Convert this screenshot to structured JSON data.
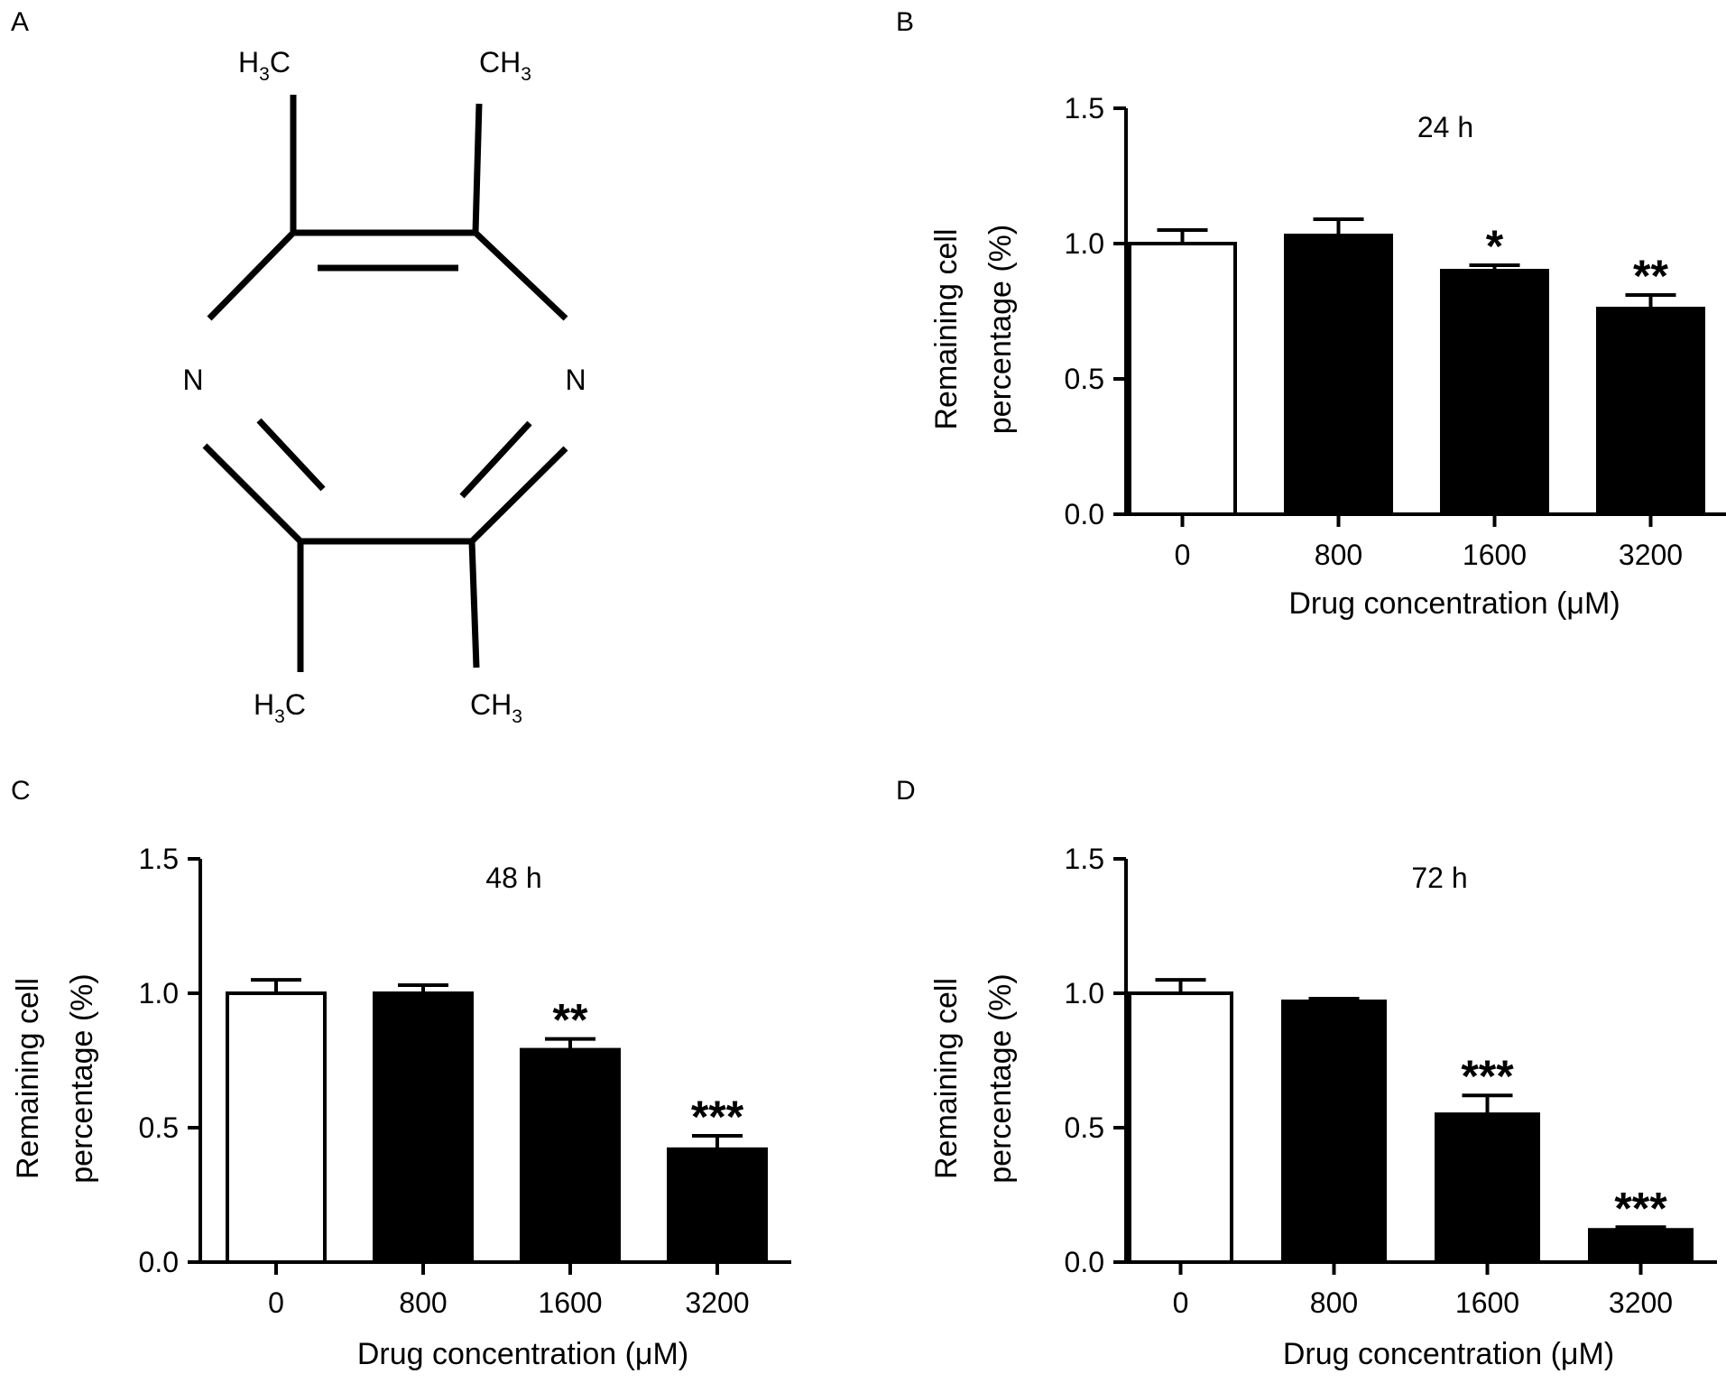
{
  "panels": {
    "a": {
      "letter": "A"
    },
    "b": {
      "letter": "B"
    },
    "c": {
      "letter": "C"
    },
    "d": {
      "letter": "D"
    }
  },
  "structure": {
    "atoms": {
      "n_left": "N",
      "n_right": "N",
      "me_top_left": {
        "main": "H",
        "sub": "3",
        "tail": "C"
      },
      "me_top_right": {
        "main": "CH",
        "sub": "3",
        "tail": ""
      },
      "me_bottom_left": {
        "main": "H",
        "sub": "3",
        "tail": "C"
      },
      "me_bottom_right": {
        "main": "CH",
        "sub": "3",
        "tail": ""
      }
    }
  },
  "chart_data": [
    {
      "panel": "B",
      "type": "bar",
      "title": "24 h",
      "xlabel": "Drug concentration (μM)",
      "ylabel_lines": [
        "Remaining cell",
        "percentage (%)"
      ],
      "categories": [
        "0",
        "800",
        "1600",
        "3200"
      ],
      "values": [
        1.0,
        1.03,
        0.9,
        0.76
      ],
      "errors": [
        0.05,
        0.06,
        0.02,
        0.05
      ],
      "significance": [
        "",
        "",
        "*",
        "**"
      ],
      "bar_fill": [
        "#ffffff",
        "#000000",
        "#000000",
        "#000000"
      ],
      "ylim": [
        0,
        1.5
      ],
      "yticks": [
        "0.0",
        "0.5",
        "1.0",
        "1.5"
      ]
    },
    {
      "panel": "C",
      "type": "bar",
      "title": "48 h",
      "xlabel": "Drug concentration (μM)",
      "ylabel_lines": [
        "Remaining cell",
        "percentage (%)"
      ],
      "categories": [
        "0",
        "800",
        "1600",
        "3200"
      ],
      "values": [
        1.0,
        1.0,
        0.79,
        0.42
      ],
      "errors": [
        0.05,
        0.03,
        0.04,
        0.05
      ],
      "significance": [
        "",
        "",
        "**",
        "***"
      ],
      "bar_fill": [
        "#ffffff",
        "#000000",
        "#000000",
        "#000000"
      ],
      "ylim": [
        0,
        1.5
      ],
      "yticks": [
        "0.0",
        "0.5",
        "1.0",
        "1.5"
      ]
    },
    {
      "panel": "D",
      "type": "bar",
      "title": "72 h",
      "xlabel": "Drug concentration (μM)",
      "ylabel_lines": [
        "Remaining cell",
        "percentage (%)"
      ],
      "categories": [
        "0",
        "800",
        "1600",
        "3200"
      ],
      "values": [
        1.0,
        0.97,
        0.55,
        0.12
      ],
      "errors": [
        0.05,
        0.01,
        0.07,
        0.01
      ],
      "significance": [
        "",
        "",
        "***",
        "***"
      ],
      "bar_fill": [
        "#ffffff",
        "#000000",
        "#000000",
        "#000000"
      ],
      "ylim": [
        0,
        1.5
      ],
      "yticks": [
        "0.0",
        "0.5",
        "1.0",
        "1.5"
      ]
    }
  ]
}
